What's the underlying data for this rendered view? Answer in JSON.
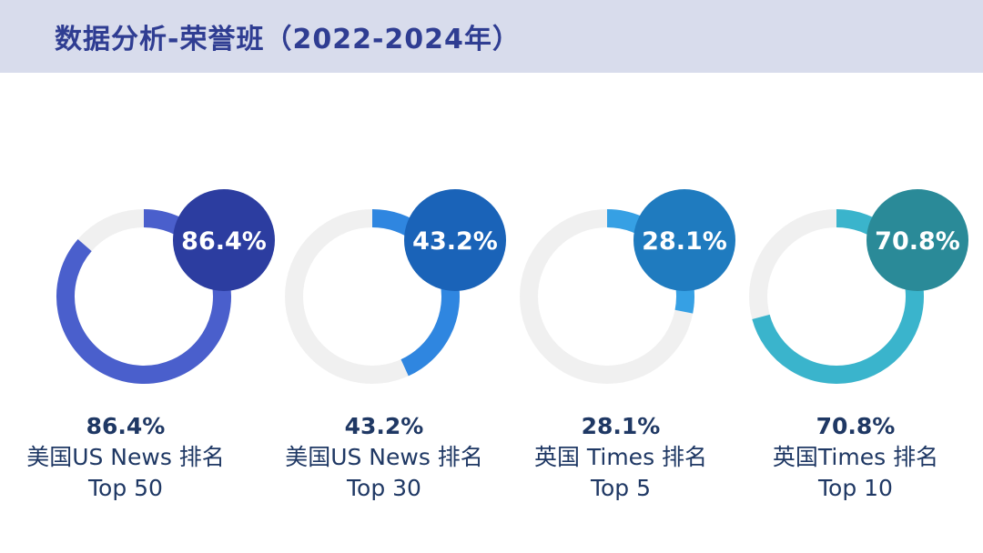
{
  "header": {
    "title": "数据分析-荣誉班（2022-2024年）"
  },
  "chart_data": {
    "type": "pie",
    "subtype": "progress-rings",
    "items": [
      {
        "value": 86.4,
        "value_label": "86.4%",
        "line1": "美国US News 排名",
        "line2": "Top 50",
        "ring_color": "#4a5fcc",
        "bubble_color": "#2c3da0"
      },
      {
        "value": 43.2,
        "value_label": "43.2%",
        "line1": "美国US News 排名",
        "line2": "Top 30",
        "ring_color": "#2f86e0",
        "bubble_color": "#1a63b8"
      },
      {
        "value": 28.1,
        "value_label": "28.1%",
        "line1": "英国 Times 排名",
        "line2": "Top 5",
        "ring_color": "#36a0e4",
        "bubble_color": "#1f7bbf"
      },
      {
        "value": 70.8,
        "value_label": "70.8%",
        "line1": "英国Times 排名",
        "line2": "Top 10",
        "ring_color": "#3ab4cc",
        "bubble_color": "#2a8a98"
      }
    ],
    "track_color": "#f0f0f0"
  }
}
